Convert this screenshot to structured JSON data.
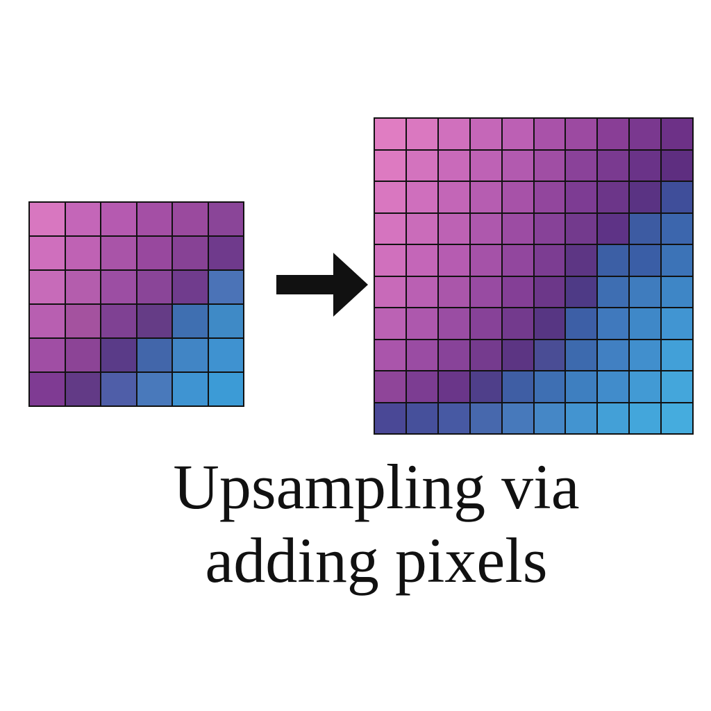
{
  "caption": {
    "line1": "Upsampling via",
    "line2": "adding pixels"
  },
  "colors": {
    "top_left": "#e07bc3",
    "bottom_left_mid": "#8a3a8a",
    "dark_diagonal": "#4e3585",
    "bottom_right": "#44a8dc",
    "grid_lines": "#111111",
    "arrow": "#111111"
  },
  "small_grid": {
    "rows": 6,
    "cols": 6,
    "pixel_colors": [
      [
        "#d877c0",
        "#c466b8",
        "#b55ab0",
        "#a44fa5",
        "#9a4a9e",
        "#8a4598"
      ],
      [
        "#cf6fbd",
        "#bf62b4",
        "#a954a8",
        "#98489e",
        "#874295",
        "#6f3a8c"
      ],
      [
        "#c76bb9",
        "#b45dad",
        "#9c4ea3",
        "#8a4598",
        "#703c8d",
        "#4b73b7"
      ],
      [
        "#b85fb1",
        "#a4529f",
        "#7f4193",
        "#653c86",
        "#3f6fb1",
        "#3f8ac6"
      ],
      [
        "#a04ea4",
        "#8c4496",
        "#5a3b88",
        "#4266aa",
        "#4185c5",
        "#3f92d0"
      ],
      [
        "#7f3b93",
        "#623a86",
        "#4f5ea8",
        "#4979bb",
        "#3f94d2",
        "#3c9bd6"
      ]
    ]
  },
  "large_grid": {
    "rows": 10,
    "cols": 10,
    "pixel_colors": [
      [
        "#e07dc2",
        "#da78c0",
        "#d070bd",
        "#c567b8",
        "#bc60b4",
        "#a952a9",
        "#9c4aa1",
        "#893e96",
        "#7a388f",
        "#6d3187"
      ],
      [
        "#dd7ac1",
        "#d373be",
        "#c96aba",
        "#be62b5",
        "#b25aaf",
        "#a04ea4",
        "#8a4299",
        "#7a3a90",
        "#6a3388",
        "#5e2e80"
      ],
      [
        "#d977c0",
        "#cf6fbd",
        "#c366b7",
        "#b65db1",
        "#a752a8",
        "#92469d",
        "#7d3c93",
        "#6c3689",
        "#5a3383",
        "#3f4e9a"
      ],
      [
        "#d574bf",
        "#ca6cba",
        "#bd62b4",
        "#ae58ad",
        "#9c4ca3",
        "#874298",
        "#733a8d",
        "#5e3386",
        "#3d5ba2",
        "#3c66ad"
      ],
      [
        "#d070bd",
        "#c466b8",
        "#b65cb1",
        "#a552a8",
        "#92479e",
        "#7c3d92",
        "#5d3684",
        "#3c5fa5",
        "#3a5ea6",
        "#3c73b7"
      ],
      [
        "#c86ab9",
        "#ba60b3",
        "#aa56aa",
        "#984ba2",
        "#843f96",
        "#6c3789",
        "#4e3a86",
        "#3e6eb2",
        "#3f7cbe",
        "#3e86c6"
      ],
      [
        "#bb62b4",
        "#ad58ad",
        "#9a4da3",
        "#874298",
        "#733a8d",
        "#573683",
        "#3d5fa6",
        "#4079bd",
        "#3f88c8",
        "#4195d2"
      ],
      [
        "#aa55ab",
        "#9a4ca3",
        "#884399",
        "#753b8e",
        "#5c3583",
        "#4a4d95",
        "#3d6aae",
        "#4180c2",
        "#418fcd",
        "#42a0d8"
      ],
      [
        "#8f4599",
        "#7c3d92",
        "#6a3689",
        "#4f3f8a",
        "#3f5ea4",
        "#3e6fb3",
        "#3e7fc0",
        "#418ccb",
        "#429ad4",
        "#44a6db"
      ],
      [
        "#4a4896",
        "#46509b",
        "#4759a3",
        "#4768ad",
        "#4779bb",
        "#4587c6",
        "#4394d0",
        "#43a0d7",
        "#43a6db",
        "#45acde"
      ]
    ]
  }
}
